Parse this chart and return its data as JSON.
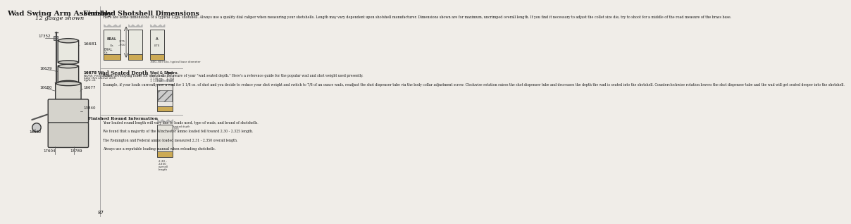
{
  "title_left": "Wad Swing Arm Assembly",
  "subtitle_left": "12 gauge shown",
  "title_right": "Finished Shotshell Dimensions",
  "body_right_intro": "Here are some dimensions of a typical 12ga. shotshell. Always use a quality dial caliper when measuring your shotshells. Length may vary dependent upon shotshell manufacturer. Dimensions shown are for maximum, uncrimped overall length. If you find it necessary to adjust the collet size die, try to shoot for a middle of the road measure of the brass base.",
  "section_wad_title": "Wad Seated Depth",
  "section_wad_body": "When developing loads for shotshells be aware of your \"wad seated depth.\" Here's a reference guide for the popular wad and shot weight used presently.\n\nExample, if your loads currently use a wad for 1 1/8 oz. of shot and you decide to reduce your shot weight and switch to 7/8 of an ounce wads, readjust the shot dispenser tube via the body collar adjustment screw. Clockwise rotation raises the shot dispenser tube and decreases the depth the wad is seated into the shotshell. Counterclockwise rotation lowers the shot dispenser tube and the wad will get seated deeper into the shotshell.",
  "wad_table_header": [
    "Wad & Shot",
    "Appro"
  ],
  "wad_table_rows": [
    [
      "7/8 - 1 oz.",
      "1 1/2"
    ],
    [
      "1 1/8 oz.",
      "1 3/4"
    ],
    [
      "1 1/4 oz.",
      "1 4/5"
    ]
  ],
  "section_round_title": "Finished Round Information",
  "section_round_body": "Your loaded round length will vary due to loads used, type of wads, and brand of shotshells.\n\nWe found that a majority of the Winchester ammo loaded fell toward 2.30 - 2.325 length.\n\nThe Remington and Federal ammo loaded measured 2.31 - 2.350 overall length.\n\nAlways use a reputable loading manual when reloading shotshells.",
  "page_number": "87",
  "bg_color": "#f0ede8",
  "text_color": "#1a1a1a",
  "part_numbers_left": [
    "17352",
    "16681",
    "16679",
    "16678",
    "16680",
    "16677",
    "13840",
    "16682",
    "17604",
    "13789"
  ],
  "shotshell_dims": "2.75 - .500",
  "brass_base_dim": ".800-.809 Dia. typical base diameter",
  "seated_depth_dim": "seated depth .065",
  "overall_length": "2.30 - 2.350 overall length"
}
